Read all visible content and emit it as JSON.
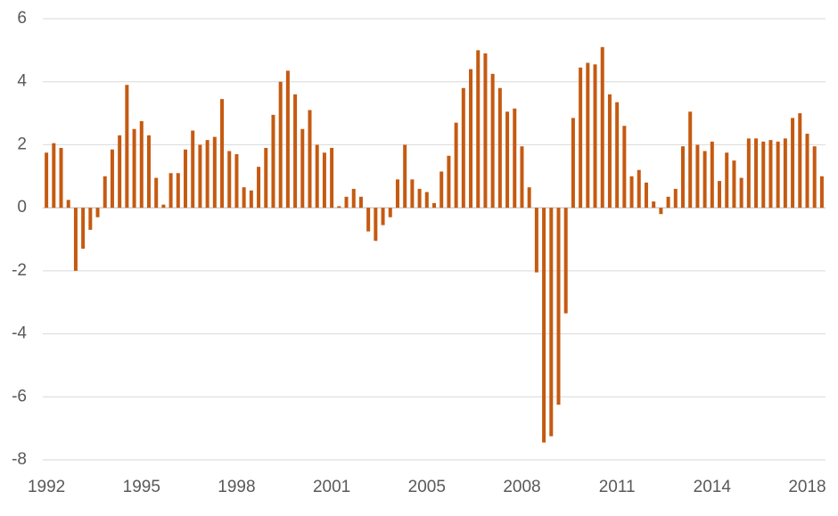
{
  "chart_data": {
    "type": "bar",
    "categories": [
      "1992",
      null,
      null,
      null,
      null,
      null,
      null,
      null,
      null,
      null,
      null,
      null,
      null,
      "1995",
      null,
      null,
      null,
      null,
      null,
      null,
      null,
      null,
      null,
      null,
      null,
      null,
      "1998",
      null,
      null,
      null,
      null,
      null,
      null,
      null,
      null,
      null,
      null,
      null,
      null,
      "2001",
      null,
      null,
      null,
      null,
      null,
      null,
      null,
      null,
      null,
      null,
      null,
      null,
      "2005",
      null,
      null,
      null,
      null,
      null,
      null,
      null,
      null,
      null,
      null,
      null,
      null,
      "2008",
      null,
      null,
      null,
      null,
      null,
      null,
      null,
      null,
      null,
      null,
      null,
      null,
      "2011",
      null,
      null,
      null,
      null,
      null,
      null,
      null,
      null,
      null,
      null,
      null,
      null,
      "2014",
      null,
      null,
      null,
      null,
      null,
      null,
      null,
      null,
      null,
      null,
      null,
      null,
      "2018",
      null,
      null
    ],
    "values": [
      1.75,
      2.05,
      1.9,
      0.25,
      -2.0,
      -1.3,
      -0.7,
      -0.3,
      1.0,
      1.85,
      2.3,
      3.9,
      2.5,
      2.75,
      2.3,
      0.95,
      0.1,
      1.1,
      1.1,
      1.85,
      2.45,
      2.0,
      2.15,
      2.25,
      3.45,
      1.8,
      1.7,
      0.65,
      0.55,
      1.3,
      1.9,
      2.95,
      4.0,
      4.35,
      3.6,
      2.5,
      3.1,
      2.0,
      1.75,
      1.9,
      0.05,
      0.35,
      0.6,
      0.35,
      -0.75,
      -1.05,
      -0.55,
      -0.3,
      0.9,
      2.0,
      0.9,
      0.6,
      0.5,
      0.15,
      1.15,
      1.65,
      2.7,
      3.8,
      4.4,
      5.0,
      4.9,
      4.25,
      3.8,
      3.05,
      3.15,
      1.95,
      0.65,
      -2.05,
      -7.45,
      -7.25,
      -6.25,
      -3.35,
      2.85,
      4.45,
      4.6,
      4.55,
      5.1,
      3.6,
      3.35,
      2.6,
      1.0,
      1.2,
      0.8,
      0.2,
      -0.2,
      0.35,
      0.6,
      1.95,
      3.05,
      2.0,
      1.8,
      2.1,
      0.85,
      1.75,
      1.5,
      0.95,
      2.2,
      2.2,
      2.1,
      2.15,
      2.1,
      2.2,
      2.85,
      3.0,
      2.35,
      1.95,
      1.0
    ],
    "color": "#c55a11",
    "ylim": [
      -8,
      6
    ],
    "yticks": [
      -8,
      -6,
      -4,
      -2,
      0,
      2,
      4,
      6
    ],
    "grid": true
  }
}
